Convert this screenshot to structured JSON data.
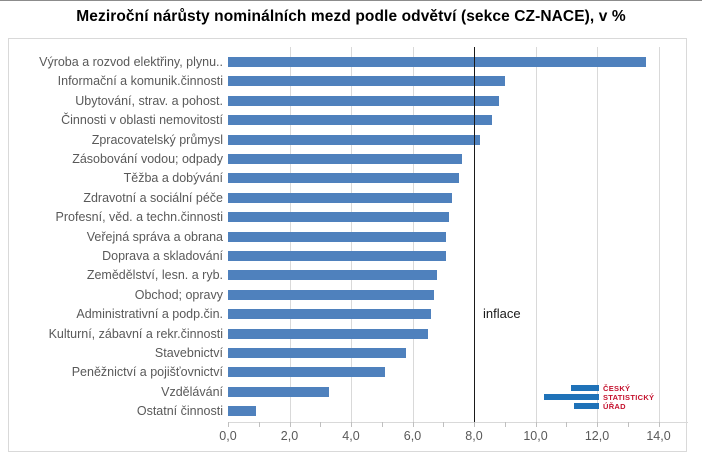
{
  "page": {
    "title": "Meziroční nárůsty nominálních mezd podle odvětví (sekce CZ-NACE), v %"
  },
  "chart_data": {
    "type": "bar",
    "orientation": "horizontal",
    "title": "Meziroční nárůsty nominálních mezd podle odvětví (sekce CZ-NACE), v %",
    "categories": [
      "Výroba a rozvod elektřiny, plynu..",
      "Informační a komunik.činnosti",
      "Ubytování, strav. a pohost.",
      "Činnosti v oblasti nemovitostí",
      "Zpracovatelský průmysl",
      "Zásobování vodou; odpady",
      "Těžba a dobývání",
      "Zdravotní a sociální péče",
      "Profesní, věd. a techn.činnosti",
      "Veřejná správa a obrana",
      "Doprava a skladování",
      "Zemědělství, lesn. a ryb.",
      "Obchod; opravy",
      "Administrativní a podp.čin.",
      "Kulturní, zábavní a rekr.činnosti",
      "Stavebnictví",
      "Peněžnictví a pojišťovnictví",
      "Vzdělávání",
      "Ostatní činnosti"
    ],
    "values": [
      13.6,
      9.0,
      8.8,
      8.6,
      8.2,
      7.6,
      7.5,
      7.3,
      7.2,
      7.1,
      7.1,
      6.8,
      6.7,
      6.6,
      6.5,
      5.8,
      5.1,
      3.3,
      0.9
    ],
    "xlabel": "",
    "ylabel": "",
    "xlim": [
      0,
      14
    ],
    "grid": true,
    "x_ticks": [
      {
        "label": "0,0",
        "value": 0
      },
      {
        "label": "2,0",
        "value": 2
      },
      {
        "label": "4,0",
        "value": 4
      },
      {
        "label": "6,0",
        "value": 6
      },
      {
        "label": "8,0",
        "value": 8
      },
      {
        "label": "10,0",
        "value": 10
      },
      {
        "label": "12,0",
        "value": 12
      },
      {
        "label": "14,0",
        "value": 14
      }
    ],
    "minor_tick_step": 1,
    "reference_line": {
      "label": "inflace",
      "value": 8.0,
      "color": "#1a1a1a"
    },
    "bar_color": "#4f81bd",
    "gridline_color": "#d9d9d9",
    "label_color": "#595959"
  },
  "logo": {
    "line1": "ČESKÝ",
    "line2": "STATISTICKÝ",
    "line3": "ÚŘAD",
    "bar_color": "#1f72b8",
    "text_color": "#c4122e"
  }
}
